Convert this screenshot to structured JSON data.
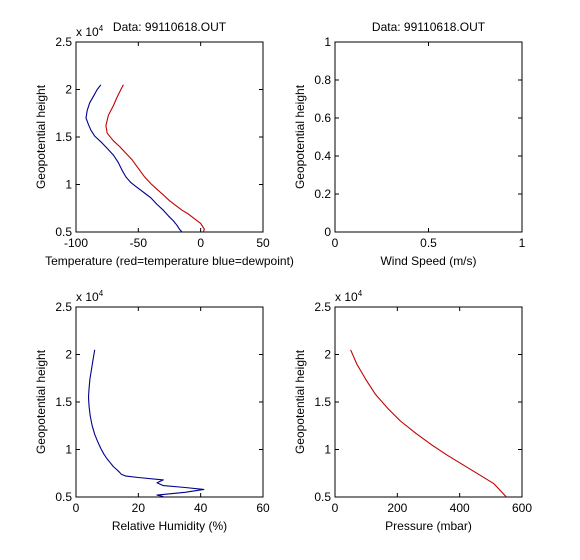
{
  "colors": {
    "temperature": "#c00000",
    "dewpoint": "#00008b",
    "humidity": "#00008b",
    "pressure": "#c00000",
    "axes": "#000000"
  },
  "chart_data": [
    {
      "type": "line",
      "title": "Data: 99110618.OUT",
      "xlabel": "Temperature (red=temperature blue=dewpoint)",
      "ylabel": "Geopotential height",
      "xlim": [
        -100,
        50
      ],
      "ylim": [
        5000,
        25000
      ],
      "x_ticks": [
        "-100",
        "-50",
        "0",
        "50"
      ],
      "y_ticks": [
        "0.5",
        "1",
        "1.5",
        "2",
        "2.5"
      ],
      "y_exponent": {
        "base": "x 10",
        "power": "4"
      },
      "grid": false,
      "series": [
        {
          "color": "#c00000",
          "x": [
            -62,
            -64,
            -67,
            -70,
            -74,
            -76,
            -75,
            -70,
            -65,
            -60,
            -55,
            -50,
            -45,
            -40,
            -35,
            -30,
            -25,
            -20,
            -15,
            -10,
            -5,
            0,
            3,
            2
          ],
          "y": [
            20500,
            20000,
            19200,
            18300,
            17300,
            16200,
            15400,
            14600,
            14000,
            13300,
            12600,
            11700,
            10800,
            10100,
            9500,
            8900,
            8300,
            7800,
            7300,
            6900,
            6400,
            5900,
            5300,
            5000
          ]
        },
        {
          "color": "#00008b",
          "x": [
            -80,
            -83,
            -86,
            -89,
            -91,
            -92,
            -90,
            -88,
            -85,
            -80,
            -75,
            -70,
            -66,
            -63,
            -60,
            -56,
            -52,
            -48,
            -44,
            -40,
            -35,
            -30,
            -26,
            -22,
            -19,
            -17,
            -15
          ],
          "y": [
            20500,
            20000,
            19300,
            18600,
            17800,
            17000,
            16300,
            15700,
            15100,
            14500,
            13800,
            13100,
            12300,
            11500,
            10800,
            10200,
            9800,
            9400,
            9000,
            8600,
            7900,
            7300,
            6700,
            6200,
            5700,
            5300,
            5000
          ]
        }
      ]
    },
    {
      "type": "line",
      "title": "Data: 99110618.OUT",
      "xlabel": "Wind Speed (m/s)",
      "ylabel": "Geopotential height",
      "xlim": [
        0,
        1
      ],
      "ylim": [
        0,
        1
      ],
      "x_ticks": [
        "0",
        "0.5",
        "1"
      ],
      "y_ticks": [
        "0",
        "0.2",
        "0.4",
        "0.6",
        "0.8",
        "1"
      ],
      "grid": false,
      "series": []
    },
    {
      "type": "line",
      "title": "",
      "xlabel": "Relative Humidity (%)",
      "ylabel": "Geopotential height",
      "xlim": [
        0,
        60
      ],
      "ylim": [
        5000,
        25000
      ],
      "x_ticks": [
        "0",
        "20",
        "40",
        "60"
      ],
      "y_ticks": [
        "0.5",
        "1",
        "1.5",
        "2",
        "2.5"
      ],
      "y_exponent": {
        "base": "x 10",
        "power": "4"
      },
      "grid": false,
      "series": [
        {
          "color": "#00008b",
          "x": [
            6,
            5.5,
            5,
            4.5,
            4.2,
            4,
            4.2,
            4.6,
            5.2,
            6,
            7,
            8,
            9,
            10,
            11,
            12,
            13,
            14,
            14.5,
            16,
            20,
            28,
            26,
            28,
            35,
            41,
            35,
            26,
            28
          ],
          "y": [
            20500,
            19500,
            18500,
            17500,
            16500,
            15500,
            14500,
            13500,
            12500,
            11600,
            10800,
            10100,
            9500,
            9000,
            8600,
            8200,
            7900,
            7600,
            7400,
            7200,
            7050,
            6800,
            6500,
            6200,
            6000,
            5800,
            5500,
            5200,
            5050
          ]
        }
      ]
    },
    {
      "type": "line",
      "title": "",
      "xlabel": "Pressure (mbar)",
      "ylabel": "Geopotential height",
      "xlim": [
        0,
        600
      ],
      "ylim": [
        5000,
        25000
      ],
      "x_ticks": [
        "0",
        "200",
        "400",
        "600"
      ],
      "y_ticks": [
        "0.5",
        "1",
        "1.5",
        "2",
        "2.5"
      ],
      "y_exponent": {
        "base": "x 10",
        "power": "4"
      },
      "grid": false,
      "series": [
        {
          "color": "#c00000",
          "x": [
            50,
            70,
            100,
            130,
            170,
            210,
            260,
            310,
            360,
            410,
            460,
            510,
            550
          ],
          "y": [
            20500,
            19000,
            17300,
            15800,
            14300,
            13000,
            11700,
            10500,
            9400,
            8400,
            7400,
            6400,
            5000
          ]
        }
      ]
    }
  ]
}
